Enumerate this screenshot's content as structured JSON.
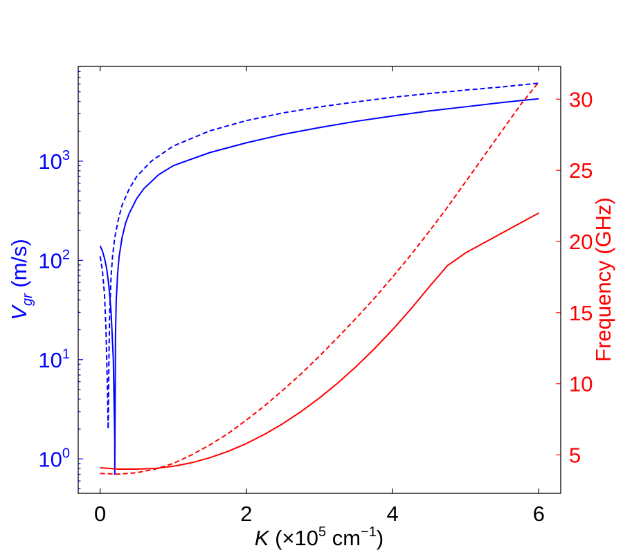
{
  "chart_data": {
    "type": "line",
    "xlabel": {
      "symbol": "K",
      "prefix": " (×10",
      "exp": "5",
      "unit": " cm",
      "unit_exp": "−1",
      "suffix": ")"
    },
    "ylabel_left": {
      "symbol": "V",
      "sub": "gr",
      "rest": " (m/s)"
    },
    "ylabel_right": "Frequency (GHz)",
    "xlim": [
      -0.3,
      6.3
    ],
    "ylim_left": [
      0.45,
      9000
    ],
    "yscale_left": "log",
    "ylim_right": [
      2.3,
      32.3
    ],
    "x_ticks": [
      "0",
      "2",
      "4",
      "6"
    ],
    "y_left_ticks": [
      {
        "value": 1,
        "base": "10",
        "exp": "0"
      },
      {
        "value": 10,
        "base": "10",
        "exp": "1"
      },
      {
        "value": 100,
        "base": "10",
        "exp": "2"
      },
      {
        "value": 1000,
        "base": "10",
        "exp": "3"
      }
    ],
    "y_right_ticks": [
      "5",
      "10",
      "15",
      "20",
      "25",
      "30"
    ],
    "colors": {
      "left_axis": "#0000ff",
      "right_axis": "#ff0000"
    },
    "series": [
      {
        "axis": "left",
        "style": "solid",
        "color": "#0000ff",
        "x": [
          0.0,
          0.03,
          0.06,
          0.09,
          0.12,
          0.15,
          0.18,
          0.19,
          0.2,
          0.2,
          0.21,
          0.22,
          0.24,
          0.26,
          0.3,
          0.35,
          0.4,
          0.5,
          0.6,
          0.8,
          1.0,
          1.5,
          2.0,
          2.5,
          3.0,
          3.5,
          4.0,
          4.5,
          5.0,
          5.5,
          6.0
        ],
        "y": [
          140,
          125,
          105,
          82,
          55,
          30,
          10,
          4,
          1.6,
          0.7,
          18,
          40,
          75,
          110,
          170,
          240,
          300,
          420,
          530,
          730,
          900,
          1220,
          1530,
          1860,
          2180,
          2520,
          2850,
          3200,
          3530,
          3900,
          4250
        ]
      },
      {
        "axis": "left",
        "style": "dashed",
        "color": "#0000ff",
        "x": [
          0.0,
          0.03,
          0.06,
          0.08,
          0.1,
          0.11,
          0.12,
          0.13,
          0.15,
          0.17,
          0.2,
          0.25,
          0.3,
          0.4,
          0.5,
          0.7,
          1.0,
          1.5,
          2.0,
          2.5,
          3.0,
          3.5,
          4.0,
          4.5,
          5.0,
          5.5,
          6.0
        ],
        "y": [
          110,
          80,
          45,
          20,
          5,
          2.0,
          10,
          30,
          70,
          110,
          170,
          260,
          360,
          530,
          700,
          1000,
          1420,
          2020,
          2560,
          3060,
          3520,
          3950,
          4400,
          4800,
          5200,
          5600,
          6100
        ]
      },
      {
        "axis": "right",
        "style": "solid",
        "color": "#ff0000",
        "x": [
          0.0,
          0.25,
          0.5,
          0.75,
          1.0,
          1.25,
          1.5,
          1.75,
          2.0,
          2.25,
          2.5,
          2.75,
          3.0,
          3.25,
          3.5,
          3.75,
          4.0,
          4.25,
          4.5,
          4.75,
          5.0,
          5.25,
          5.5,
          5.75,
          6.0
        ],
        "y": [
          4.1,
          4.0,
          4.0,
          4.05,
          4.2,
          4.45,
          4.8,
          5.25,
          5.8,
          6.45,
          7.2,
          8.05,
          9.0,
          10.05,
          11.2,
          12.45,
          13.8,
          15.25,
          16.8,
          18.3,
          19.2,
          19.9,
          20.6,
          21.3,
          22.0
        ]
      },
      {
        "axis": "right",
        "style": "dashed",
        "color": "#ff0000",
        "x": [
          0.0,
          0.25,
          0.5,
          0.75,
          1.0,
          1.25,
          1.5,
          1.75,
          2.0,
          2.25,
          2.5,
          2.75,
          3.0,
          3.25,
          3.5,
          3.75,
          4.0,
          4.25,
          4.5,
          4.75,
          5.0,
          5.25,
          5.5,
          5.75,
          6.0
        ],
        "y": [
          3.7,
          3.65,
          3.75,
          4.0,
          4.4,
          5.0,
          5.7,
          6.5,
          7.45,
          8.45,
          9.55,
          10.7,
          11.95,
          13.25,
          14.6,
          16.0,
          17.5,
          19.05,
          20.7,
          22.4,
          24.2,
          26.0,
          27.8,
          29.6,
          31.2
        ]
      }
    ]
  }
}
